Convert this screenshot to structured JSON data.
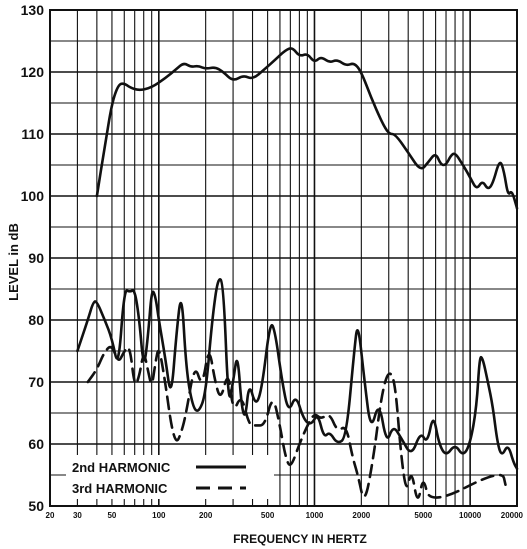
{
  "chart_data": {
    "type": "line",
    "title": "",
    "xlabel": "FREQUENCY IN HERTZ",
    "ylabel": "LEVEL in dB",
    "x_scale": "log",
    "xlim": [
      20,
      20000
    ],
    "ylim": [
      50,
      130
    ],
    "grid": true,
    "legend_position": "bottom-left",
    "x_ticks": [
      20,
      30,
      50,
      100,
      200,
      500,
      1000,
      2000,
      5000,
      10000,
      20000
    ],
    "x_tick_labels": [
      "20",
      "30",
      "50",
      "100",
      "200",
      "500",
      "1000",
      "2000",
      "5000",
      "10000",
      "20000"
    ],
    "y_ticks": [
      50,
      60,
      70,
      80,
      90,
      100,
      110,
      120,
      130
    ],
    "y_tick_labels": [
      "50",
      "60",
      "70",
      "80",
      "90",
      "100",
      "110",
      "120",
      "130"
    ],
    "series": [
      {
        "name": "",
        "style": "solid",
        "points": [
          [
            40,
            100
          ],
          [
            45,
            108
          ],
          [
            50,
            115
          ],
          [
            55,
            118
          ],
          [
            60,
            118.2
          ],
          [
            65,
            117.5
          ],
          [
            75,
            117
          ],
          [
            90,
            117.5
          ],
          [
            110,
            119
          ],
          [
            130,
            120.5
          ],
          [
            145,
            121.5
          ],
          [
            160,
            120.8
          ],
          [
            180,
            121
          ],
          [
            200,
            120.5
          ],
          [
            230,
            120.8
          ],
          [
            260,
            120
          ],
          [
            300,
            118.5
          ],
          [
            350,
            119.5
          ],
          [
            400,
            118.8
          ],
          [
            480,
            120.5
          ],
          [
            560,
            122
          ],
          [
            650,
            123.5
          ],
          [
            720,
            124
          ],
          [
            800,
            122.5
          ],
          [
            900,
            123
          ],
          [
            1000,
            121.5
          ],
          [
            1100,
            122.5
          ],
          [
            1250,
            121.5
          ],
          [
            1400,
            122
          ],
          [
            1600,
            121
          ],
          [
            1800,
            121.5
          ],
          [
            2000,
            120
          ],
          [
            2300,
            116
          ],
          [
            2700,
            112
          ],
          [
            3000,
            110
          ],
          [
            3300,
            110
          ],
          [
            4000,
            107
          ],
          [
            4800,
            104
          ],
          [
            5400,
            105.5
          ],
          [
            6000,
            107
          ],
          [
            6500,
            105
          ],
          [
            7000,
            105
          ],
          [
            7500,
            106.5
          ],
          [
            8000,
            107
          ],
          [
            9000,
            105
          ],
          [
            10000,
            103
          ],
          [
            11000,
            101
          ],
          [
            12000,
            102.5
          ],
          [
            13000,
            101
          ],
          [
            14000,
            102
          ],
          [
            15500,
            106
          ],
          [
            16500,
            104
          ],
          [
            17500,
            100
          ],
          [
            18500,
            101
          ],
          [
            20000,
            98
          ]
        ]
      },
      {
        "name": "2nd HARMONIC",
        "style": "solid",
        "points": [
          [
            30,
            75
          ],
          [
            35,
            80
          ],
          [
            38,
            83
          ],
          [
            40,
            83
          ],
          [
            45,
            80
          ],
          [
            50,
            77
          ],
          [
            55,
            72
          ],
          [
            60,
            85
          ],
          [
            65,
            84.5
          ],
          [
            70,
            85
          ],
          [
            75,
            80
          ],
          [
            80,
            72
          ],
          [
            85,
            77
          ],
          [
            90,
            85
          ],
          [
            95,
            84
          ],
          [
            100,
            80
          ],
          [
            110,
            74
          ],
          [
            120,
            67
          ],
          [
            130,
            78
          ],
          [
            140,
            85
          ],
          [
            150,
            72
          ],
          [
            165,
            66
          ],
          [
            180,
            65
          ],
          [
            200,
            68
          ],
          [
            220,
            80
          ],
          [
            240,
            87
          ],
          [
            260,
            86
          ],
          [
            280,
            66
          ],
          [
            300,
            70
          ],
          [
            320,
            75
          ],
          [
            340,
            66
          ],
          [
            360,
            64
          ],
          [
            380,
            70
          ],
          [
            420,
            66
          ],
          [
            460,
            69
          ],
          [
            520,
            80
          ],
          [
            560,
            78
          ],
          [
            620,
            70
          ],
          [
            680,
            65
          ],
          [
            760,
            68
          ],
          [
            850,
            64
          ],
          [
            950,
            63
          ],
          [
            1050,
            65
          ],
          [
            1150,
            61
          ],
          [
            1250,
            62
          ],
          [
            1400,
            60
          ],
          [
            1600,
            61
          ],
          [
            1800,
            75
          ],
          [
            1900,
            80
          ],
          [
            2100,
            70
          ],
          [
            2300,
            62
          ],
          [
            2600,
            67
          ],
          [
            2900,
            60
          ],
          [
            3200,
            63
          ],
          [
            3600,
            61
          ],
          [
            4200,
            58
          ],
          [
            4800,
            62
          ],
          [
            5300,
            60
          ],
          [
            5800,
            65
          ],
          [
            6300,
            60
          ],
          [
            7000,
            58
          ],
          [
            8000,
            60
          ],
          [
            9000,
            58
          ],
          [
            10000,
            60
          ],
          [
            11000,
            66
          ],
          [
            11500,
            74
          ],
          [
            12000,
            74
          ],
          [
            13000,
            70
          ],
          [
            14000,
            66
          ],
          [
            15000,
            60
          ],
          [
            16000,
            58
          ],
          [
            17500,
            60
          ],
          [
            19000,
            57
          ],
          [
            20000,
            56
          ]
        ]
      },
      {
        "name": "3rd HARMONIC",
        "style": "dashed",
        "points": [
          [
            35,
            70
          ],
          [
            40,
            72
          ],
          [
            45,
            75
          ],
          [
            50,
            76
          ],
          [
            55,
            73
          ],
          [
            60,
            75
          ],
          [
            65,
            76
          ],
          [
            70,
            69
          ],
          [
            75,
            71
          ],
          [
            80,
            75
          ],
          [
            85,
            72
          ],
          [
            90,
            69
          ],
          [
            95,
            73
          ],
          [
            100,
            76
          ],
          [
            110,
            70
          ],
          [
            120,
            63
          ],
          [
            130,
            60
          ],
          [
            140,
            62
          ],
          [
            150,
            65
          ],
          [
            170,
            73
          ],
          [
            190,
            69
          ],
          [
            210,
            76
          ],
          [
            230,
            70
          ],
          [
            250,
            67
          ],
          [
            280,
            72
          ],
          [
            300,
            65
          ],
          [
            340,
            68
          ],
          [
            380,
            63
          ],
          [
            420,
            63
          ],
          [
            480,
            63
          ],
          [
            540,
            68
          ],
          [
            600,
            63
          ],
          [
            650,
            58
          ],
          [
            700,
            56
          ],
          [
            800,
            60
          ],
          [
            900,
            63
          ],
          [
            1000,
            65
          ],
          [
            1100,
            64
          ],
          [
            1250,
            65
          ],
          [
            1400,
            62
          ],
          [
            1600,
            63
          ],
          [
            1750,
            58
          ],
          [
            1900,
            55
          ],
          [
            2100,
            50
          ],
          [
            2400,
            58
          ],
          [
            2700,
            68
          ],
          [
            3000,
            72
          ],
          [
            3300,
            70
          ],
          [
            3600,
            58
          ],
          [
            3900,
            52
          ],
          [
            4200,
            56
          ],
          [
            4600,
            50
          ],
          [
            5000,
            55
          ],
          [
            5500,
            50
          ],
          [
            16000,
            56
          ],
          [
            17000,
            53
          ]
        ]
      }
    ],
    "legend": [
      {
        "label": "2nd HARMONIC",
        "style": "solid"
      },
      {
        "label": "3rd HARMONIC",
        "style": "dashed"
      }
    ]
  }
}
